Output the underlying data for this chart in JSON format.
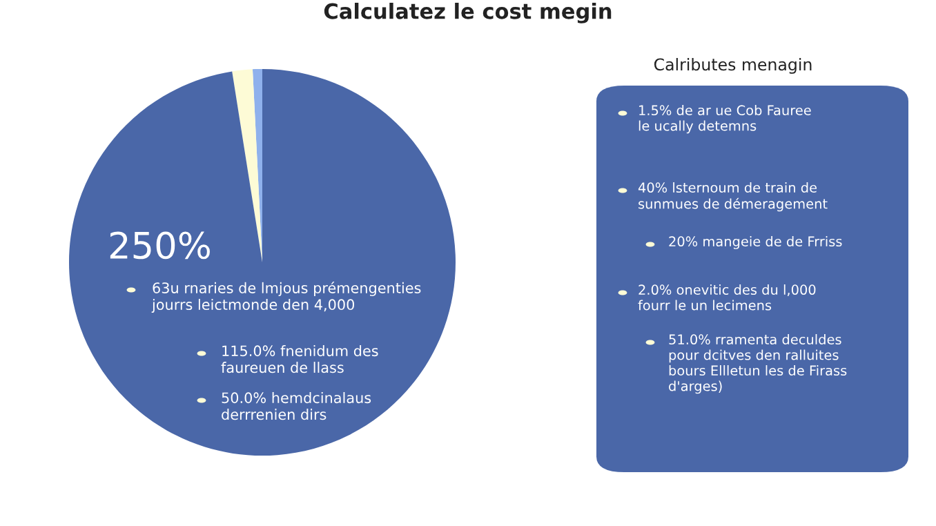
{
  "chart_data": {
    "type": "pie",
    "title": "Calculatez le cost megin",
    "categories": [
      null,
      null,
      null
    ],
    "values": [
      0.8,
      1.7,
      97.5
    ],
    "colors": [
      "#8fb1ec",
      "#fdfbd6",
      "#4a67a8"
    ],
    "annotations": [
      "250%",
      "63u rnaries de lmjous prémengenties\njourrs leictmonde den 4,000",
      "115.0% fnenidum des\nfaureuen de llass",
      "50.0% hemdcinalaus\nderrrenien dirs",
      "Calributes menagin",
      "1.5% de ar ue Cob Fauree\nle ucally detemns",
      "40% lsternoum de train de\nsunmues de démeragement",
      "20% mangeie de de Frriss",
      "2.0% onevitic des du l,000\nfourr le un lecimens",
      "51.0% rramenta deculdes\npour dcitves den ralluites\nbours Ellletun les de Firass\nd'arges)"
    ]
  }
}
